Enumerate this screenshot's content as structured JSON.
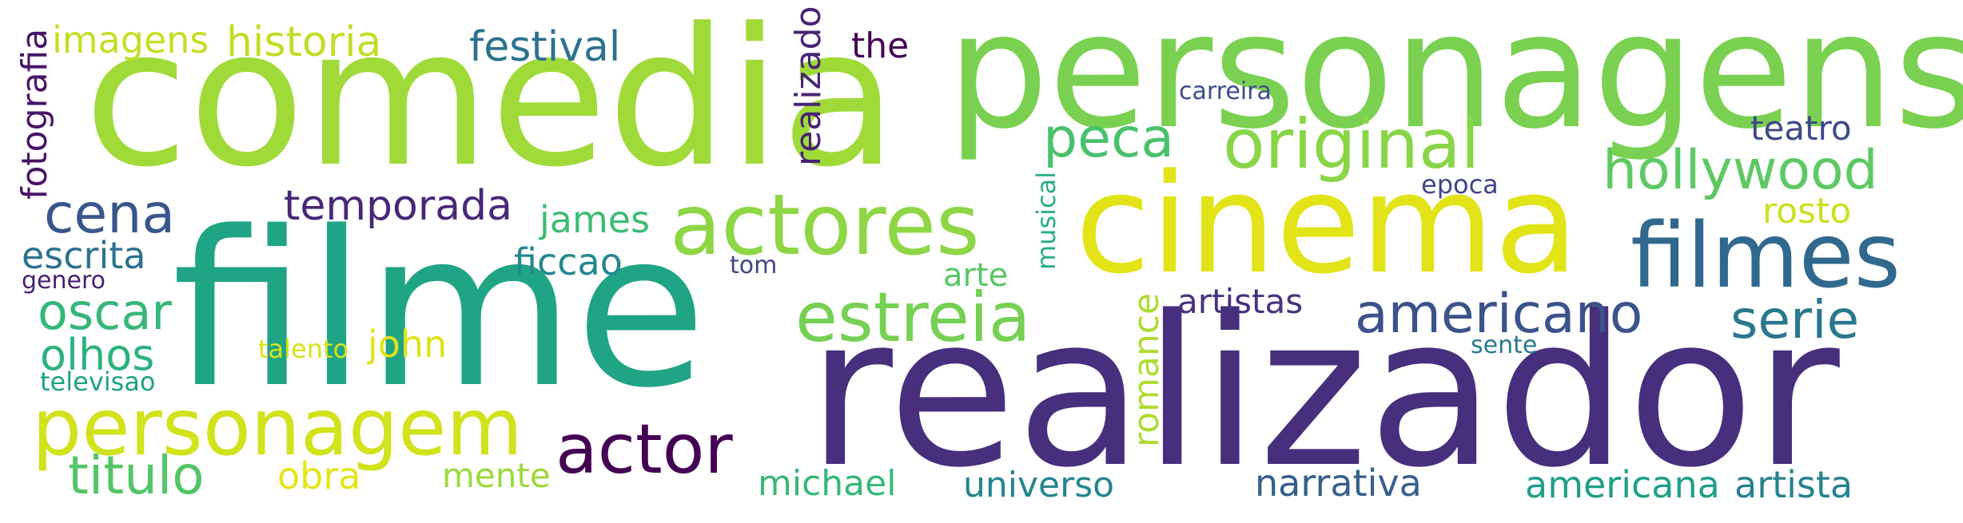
{
  "words": [
    {
      "text": "comedia",
      "color": "#a0da39"
    },
    {
      "text": "personagens",
      "color": "#7ad151"
    },
    {
      "text": "filme",
      "color": "#20a486"
    },
    {
      "text": "realizador",
      "color": "#472f7d"
    },
    {
      "text": "cinema",
      "color": "#e2e418"
    },
    {
      "text": "actores",
      "color": "#8ed645"
    },
    {
      "text": "filmes",
      "color": "#31688e"
    },
    {
      "text": "personagem",
      "color": "#d2e21b"
    },
    {
      "text": "original",
      "color": "#89d548"
    },
    {
      "text": "hollywood",
      "color": "#5ec962"
    },
    {
      "text": "estreia",
      "color": "#75d054"
    },
    {
      "text": "actor",
      "color": "#440154"
    },
    {
      "text": "americano",
      "color": "#3b528b"
    },
    {
      "text": "peca",
      "color": "#4ac16d"
    },
    {
      "text": "cena",
      "color": "#39568c"
    },
    {
      "text": "titulo",
      "color": "#54c568"
    },
    {
      "text": "serie",
      "color": "#2a788e"
    },
    {
      "text": "temporada",
      "color": "#482878"
    },
    {
      "text": "historia",
      "color": "#bddf26"
    },
    {
      "text": "festival",
      "color": "#2c728e"
    },
    {
      "text": "oscar",
      "color": "#35b779"
    },
    {
      "text": "olhos",
      "color": "#2db27d"
    },
    {
      "text": "escrita",
      "color": "#2c728e"
    },
    {
      "text": "imagens",
      "color": "#c2df23"
    },
    {
      "text": "james",
      "color": "#3dbc74"
    },
    {
      "text": "ficcao",
      "color": "#24878e"
    },
    {
      "text": "john",
      "color": "#dde318"
    },
    {
      "text": "obra",
      "color": "#e5e419"
    },
    {
      "text": "mente",
      "color": "#9dd93b"
    },
    {
      "text": "michael",
      "color": "#37b878"
    },
    {
      "text": "universo",
      "color": "#25858e"
    },
    {
      "text": "narrativa",
      "color": "#355f8d"
    },
    {
      "text": "americana",
      "color": "#1f9e89"
    },
    {
      "text": "artista",
      "color": "#26828e"
    },
    {
      "text": "teatro",
      "color": "#3e4989"
    },
    {
      "text": "rosto",
      "color": "#cae11f"
    },
    {
      "text": "artistas",
      "color": "#46327e"
    },
    {
      "text": "arte",
      "color": "#58c765"
    },
    {
      "text": "the",
      "color": "#440154"
    },
    {
      "text": "carreira",
      "color": "#3e4c8a"
    },
    {
      "text": "epoca",
      "color": "#414487"
    },
    {
      "text": "talento",
      "color": "#d8e219"
    },
    {
      "text": "genero",
      "color": "#481f70"
    },
    {
      "text": "televisao",
      "color": "#1fa187"
    },
    {
      "text": "tom",
      "color": "#414487"
    },
    {
      "text": "sente",
      "color": "#2a788e"
    },
    {
      "text": "fotografia",
      "color": "#481467"
    },
    {
      "text": "realizado",
      "color": "#482475"
    },
    {
      "text": "romance",
      "color": "#addc30"
    },
    {
      "text": "musical",
      "color": "#29af7f"
    }
  ]
}
